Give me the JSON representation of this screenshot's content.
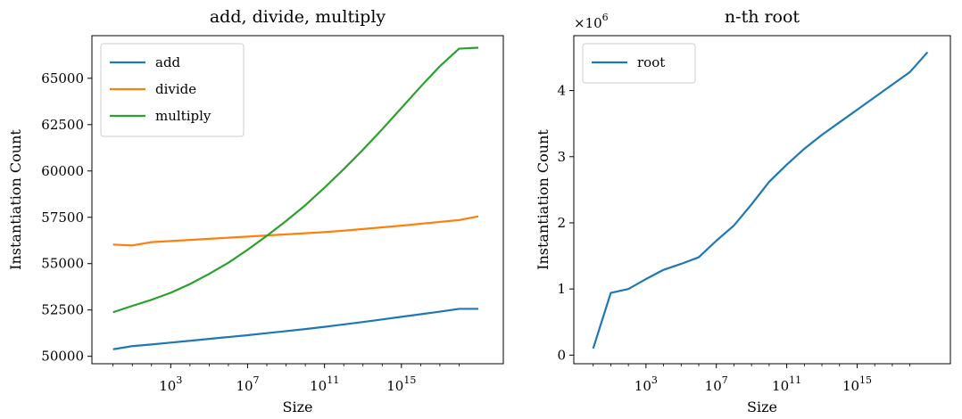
{
  "chart_data": [
    {
      "type": "line",
      "title": "add, divide, multiply",
      "xlabel": "Size",
      "ylabel": "Instantiation Count",
      "xscale": "log",
      "x": [
        1,
        10,
        100,
        1000,
        10000,
        100000,
        1000000,
        10000000,
        100000000,
        1000000000,
        10000000000,
        100000000000,
        1000000000000,
        10000000000000,
        100000000000000,
        1000000000000000,
        10000000000000000,
        100000000000000000,
        1000000000000000000,
        10000000000000000000
      ],
      "xticks": [
        {
          "value": 1000,
          "base": "10",
          "exp": "3"
        },
        {
          "value": 10000000,
          "base": "10",
          "exp": "7"
        },
        {
          "value": 100000000000,
          "base": "10",
          "exp": "11"
        },
        {
          "value": 1000000000000000,
          "base": "10",
          "exp": "15"
        }
      ],
      "ylim": [
        49600,
        67300
      ],
      "yticks": [
        "50000",
        "52500",
        "55000",
        "57500",
        "60000",
        "62500",
        "65000"
      ],
      "grid": false,
      "legend_position": "upper-left",
      "series": [
        {
          "name": "add",
          "color": "#1f77b4",
          "values": [
            50380,
            50550,
            50640,
            50740,
            50840,
            50940,
            51040,
            51140,
            51250,
            51360,
            51470,
            51590,
            51720,
            51850,
            51990,
            52130,
            52270,
            52410,
            52560,
            52560
          ]
        },
        {
          "name": "divide",
          "color": "#ff7f0e",
          "values": [
            56030,
            55980,
            56160,
            56220,
            56280,
            56340,
            56400,
            56460,
            56520,
            56580,
            56640,
            56700,
            56780,
            56870,
            56960,
            57050,
            57150,
            57250,
            57350,
            57550
          ]
        },
        {
          "name": "multiply",
          "color": "#2ca02c",
          "values": [
            52380,
            52720,
            53050,
            53430,
            53900,
            54450,
            55050,
            55750,
            56500,
            57300,
            58150,
            59100,
            60100,
            61150,
            62250,
            63400,
            64550,
            65650,
            66600,
            66650
          ]
        }
      ]
    },
    {
      "type": "line",
      "title": "n-th root",
      "xlabel": "Size",
      "ylabel": "Instantiation Count",
      "xscale": "log",
      "x": [
        1,
        10,
        100,
        1000,
        10000,
        100000,
        1000000,
        10000000,
        100000000,
        1000000000,
        10000000000,
        100000000000,
        1000000000000,
        10000000000000,
        100000000000000,
        1000000000000000,
        10000000000000000,
        100000000000000000,
        1000000000000000000,
        10000000000000000000
      ],
      "xticks": [
        {
          "value": 1000,
          "base": "10",
          "exp": "3"
        },
        {
          "value": 10000000,
          "base": "10",
          "exp": "7"
        },
        {
          "value": 100000000000,
          "base": "10",
          "exp": "11"
        },
        {
          "value": 1000000000000000,
          "base": "10",
          "exp": "15"
        }
      ],
      "ylim": [
        -0.13,
        4.83
      ],
      "yticks": [
        "0",
        "1",
        "2",
        "3",
        "4"
      ],
      "offset_text": {
        "base": "×10",
        "exp": "6"
      },
      "grid": false,
      "legend_position": "upper-left",
      "series": [
        {
          "name": "root",
          "color": "#1f77b4",
          "values": [
            0.1,
            0.94,
            1.0,
            1.15,
            1.29,
            1.38,
            1.48,
            1.73,
            1.96,
            2.28,
            2.62,
            2.88,
            3.12,
            3.33,
            3.52,
            3.71,
            3.9,
            4.09,
            4.28,
            4.58
          ]
        }
      ]
    }
  ]
}
